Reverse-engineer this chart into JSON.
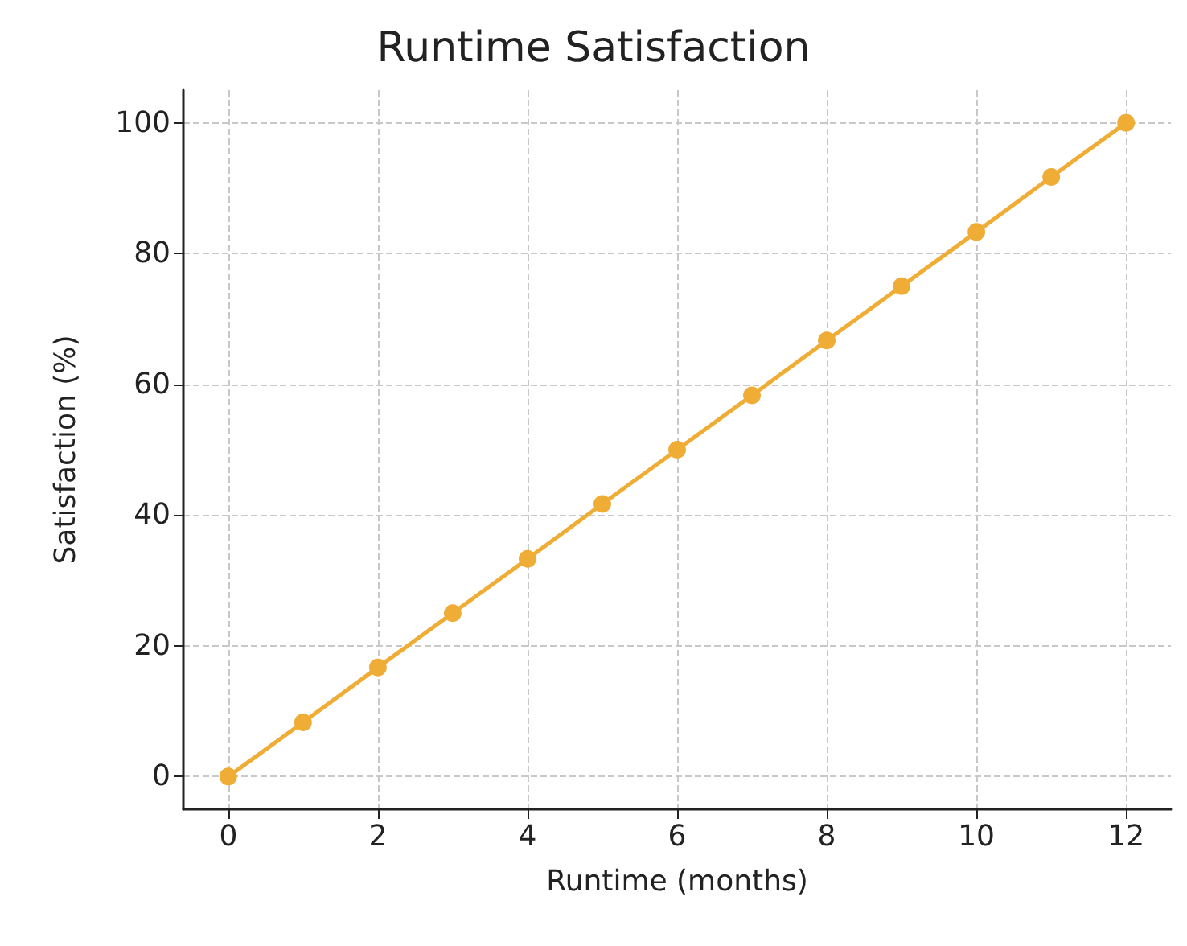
{
  "chart_data": {
    "type": "line",
    "title": "Runtime Satisfaction",
    "xlabel": "Runtime (months)",
    "ylabel": "Satisfaction (%)",
    "x": [
      0,
      1,
      2,
      3,
      4,
      5,
      6,
      7,
      8,
      9,
      10,
      11,
      12
    ],
    "series": [
      {
        "color": "#f0ad35",
        "values": [
          0,
          8.3,
          16.7,
          25,
          33.3,
          41.7,
          50,
          58.3,
          66.7,
          75,
          83.3,
          91.7,
          100
        ]
      }
    ],
    "xlim": [
      -0.6,
      12.6
    ],
    "xticks": [
      0,
      2,
      4,
      6,
      8,
      10,
      12
    ],
    "ylim": [
      -5,
      105
    ],
    "yticks": [
      0,
      20,
      40,
      60,
      80,
      100
    ],
    "grid": true,
    "marker": "circle",
    "line_style": "solid"
  }
}
